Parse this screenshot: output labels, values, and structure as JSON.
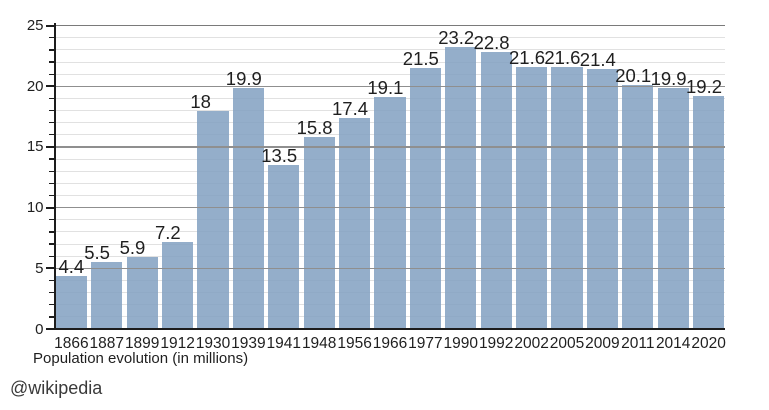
{
  "chart_data": {
    "type": "bar",
    "title": "",
    "categories": [
      "1866",
      "1887",
      "1899",
      "1912",
      "1930",
      "1939",
      "1941",
      "1948",
      "1956",
      "1966",
      "1977",
      "1990",
      "1992",
      "2002",
      "2005",
      "2009",
      "2011",
      "2014",
      "2020"
    ],
    "values": [
      4.4,
      5.5,
      5.9,
      7.2,
      18,
      19.9,
      13.5,
      15.8,
      17.4,
      19.1,
      21.5,
      23.2,
      22.8,
      21.6,
      21.6,
      21.4,
      20.1,
      19.9,
      19.2
    ],
    "value_labels": [
      "4.4",
      "5.5",
      "5.9",
      "7.2",
      "18",
      "19.9",
      "13.5",
      "15.8",
      "17.4",
      "19.1",
      "21.5",
      "23.2",
      "22.8",
      "21.6",
      "21.6",
      "21.4",
      "20.1",
      "19.9",
      "19.2"
    ],
    "xlabel": "Population evolution (in millions)",
    "ylabel": "",
    "ylim": [
      0,
      25
    ],
    "yticks_major": [
      0,
      5,
      10,
      15,
      20,
      25
    ],
    "y_minor_step": 1,
    "grid": "horizontal major and minor gridlines, top border line at 25",
    "legend": "none",
    "credit": "@wikipedia",
    "colors": {
      "bar": "#94aeca",
      "bar_rgba": "rgba(129,160,193,0.85)",
      "minor_grid": "#e1e1e1",
      "major_grid": "#8f8f8f",
      "top_border": "#7a7a7a",
      "axis": "#1d1d1d",
      "text": "#1f1f1f",
      "credit_text": "#3a3a3a",
      "background": "#ffffff"
    }
  }
}
